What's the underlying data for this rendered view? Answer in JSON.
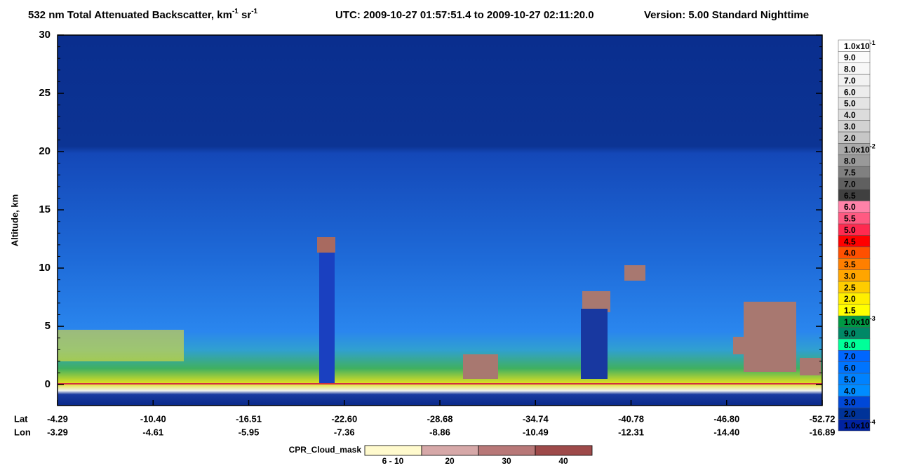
{
  "chart_data": {
    "type": "curtain",
    "title_parts": [
      "532 nm Total Attenuated Backscatter, km",
      "-1",
      " sr",
      "-1"
    ],
    "time_range": "UTC:  2009-10-27 01:57:51.4  to  2009-10-27 02:11:20.0",
    "version": "Version: 5.00  Standard  Nighttime",
    "ylabel": "Altitude, km",
    "ylim": [
      -1.8,
      30
    ],
    "yticks": [
      0,
      5,
      10,
      15,
      20,
      25,
      30
    ],
    "x_rows": [
      {
        "name": "Lat",
        "labels": [
          "-4.29",
          "-10.40",
          "-16.51",
          "-22.60",
          "-28.68",
          "-34.74",
          "-40.78",
          "-46.80",
          "-52.72"
        ]
      },
      {
        "name": "Lon",
        "labels": [
          "-3.29",
          "-4.61",
          "-5.95",
          "-7.36",
          "-8.86",
          "-10.49",
          "-12.31",
          "-14.40",
          "-16.89"
        ]
      }
    ],
    "colorbar": [
      {
        "label": "1.0x10",
        "exp": "-1",
        "color": "#ffffff"
      },
      {
        "label": "9.0",
        "color": "#fbfbfb"
      },
      {
        "label": "8.0",
        "color": "#f7f7f7"
      },
      {
        "label": "7.0",
        "color": "#f2f2f2"
      },
      {
        "label": "6.0",
        "color": "#ececec"
      },
      {
        "label": "5.0",
        "color": "#e4e4e4"
      },
      {
        "label": "4.0",
        "color": "#dcdcdc"
      },
      {
        "label": "3.0",
        "color": "#d2d2d2"
      },
      {
        "label": "2.0",
        "color": "#c6c6c6"
      },
      {
        "label": "1.0x10",
        "exp": "-2",
        "color": "#aaaaaa"
      },
      {
        "label": "8.0",
        "color": "#999999"
      },
      {
        "label": "7.5",
        "color": "#808080"
      },
      {
        "label": "7.0",
        "color": "#606060"
      },
      {
        "label": "6.5",
        "color": "#404040"
      },
      {
        "label": "6.0",
        "color": "#ff82a8"
      },
      {
        "label": "5.5",
        "color": "#ff5a82"
      },
      {
        "label": "5.0",
        "color": "#ff2a50"
      },
      {
        "label": "4.5",
        "color": "#ff0000"
      },
      {
        "label": "4.0",
        "color": "#ff5000"
      },
      {
        "label": "3.5",
        "color": "#ff7f00"
      },
      {
        "label": "3.0",
        "color": "#ffa500"
      },
      {
        "label": "2.5",
        "color": "#ffcc00"
      },
      {
        "label": "2.0",
        "color": "#ffee00"
      },
      {
        "label": "1.5",
        "color": "#ffff00"
      },
      {
        "label": "1.0x10",
        "exp": "-3",
        "color": "#009944"
      },
      {
        "label": "9.0",
        "color": "#008866"
      },
      {
        "label": "8.0",
        "color": "#00ff99"
      },
      {
        "label": "7.0",
        "color": "#0066ff"
      },
      {
        "label": "6.0",
        "color": "#0074ff"
      },
      {
        "label": "5.0",
        "color": "#0082ff"
      },
      {
        "label": "4.0",
        "color": "#008cff"
      },
      {
        "label": "3.0",
        "color": "#0048d8"
      },
      {
        "label": "2.0",
        "color": "#003399"
      },
      {
        "label": "1.0x10",
        "exp": "-4",
        "color": "#0022a0"
      }
    ],
    "cpr_legend": {
      "title": "CPR_Cloud_mask",
      "items": [
        {
          "label": "6 - 10",
          "color": "#fffacd"
        },
        {
          "label": "20",
          "color": "#d6a8a8"
        },
        {
          "label": "30",
          "color": "#b87878"
        },
        {
          "label": "40",
          "color": "#9e4a4a"
        }
      ]
    }
  }
}
